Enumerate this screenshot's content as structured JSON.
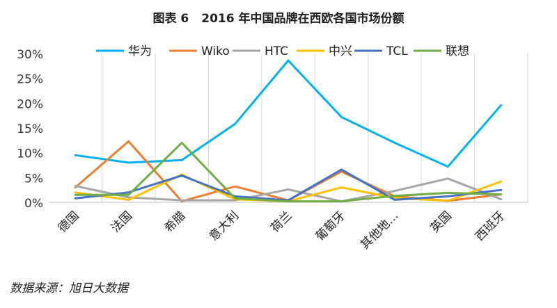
{
  "figure": {
    "title_prefix": "图表 6",
    "title_text": "2016 年中国品牌在西欧各国市场份额",
    "source": "数据来源：旭日大数据"
  },
  "chart_data": {
    "type": "line",
    "title": "",
    "xlabel": "",
    "ylabel": "",
    "categories": [
      "德国",
      "法国",
      "希腊",
      "意大利",
      "荷兰",
      "葡萄牙",
      "其他地…",
      "英国",
      "西班牙"
    ],
    "ylim": [
      0,
      30
    ],
    "yticks": [
      0,
      5,
      10,
      15,
      20,
      25,
      30
    ],
    "ytick_labels": [
      "0%",
      "5%",
      "10%",
      "15%",
      "20%",
      "25%",
      "30%"
    ],
    "grid": "vertical",
    "legend_position": "top",
    "series": [
      {
        "name": "华为",
        "color": "#00b0f0",
        "values": [
          9.5,
          8.0,
          8.5,
          15.8,
          28.6,
          17.2,
          12.0,
          7.2,
          19.6
        ]
      },
      {
        "name": "Wiko",
        "color": "#ed7d31",
        "values": [
          3.0,
          12.3,
          0.2,
          3.2,
          0.4,
          6.2,
          1.2,
          0.3,
          1.6
        ]
      },
      {
        "name": "HTC",
        "color": "#a5a5a5",
        "values": [
          3.3,
          1.0,
          0.4,
          0.4,
          2.6,
          0.2,
          2.3,
          4.8,
          0.6
        ]
      },
      {
        "name": "中兴",
        "color": "#ffc000",
        "values": [
          2.0,
          0.5,
          5.6,
          0.6,
          0.2,
          3.0,
          0.9,
          0.3,
          4.2
        ]
      },
      {
        "name": "TCL",
        "color": "#4472c4",
        "values": [
          0.8,
          2.0,
          5.4,
          1.2,
          0.4,
          6.6,
          0.5,
          1.2,
          2.5
        ]
      },
      {
        "name": "联想",
        "color": "#70ad47",
        "values": [
          1.5,
          1.5,
          12.0,
          0.8,
          0.2,
          0.2,
          1.3,
          1.9,
          1.6
        ]
      }
    ]
  }
}
